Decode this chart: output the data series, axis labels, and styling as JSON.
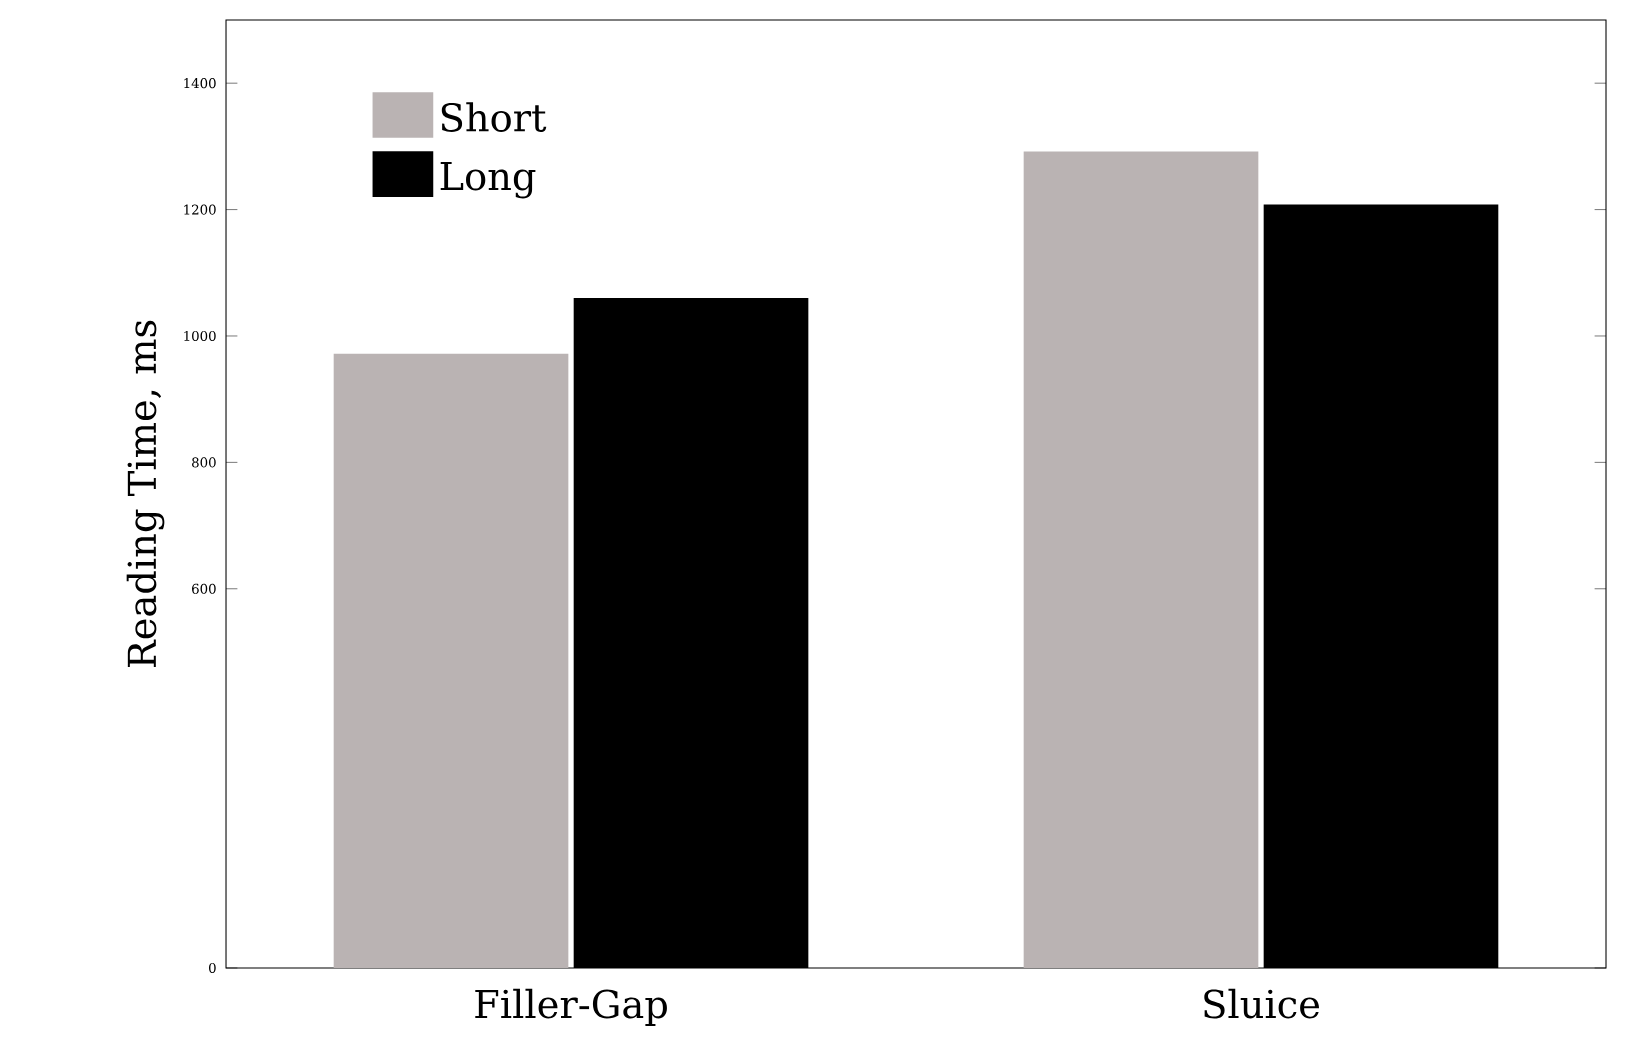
{
  "chart_data": {
    "type": "bar",
    "ylabel": "Reading Time, ms",
    "categories": [
      "Filler-Gap",
      "Sluice"
    ],
    "series": [
      {
        "name": "Short",
        "color": "#bab3b3",
        "values": [
          972,
          1292
        ]
      },
      {
        "name": "Long",
        "color": "#000000",
        "values": [
          1060,
          1208
        ]
      }
    ],
    "ylim": [
      0,
      1500
    ],
    "yticks": [
      0,
      600,
      800,
      1000,
      1200,
      1400
    ],
    "legend": "top left"
  }
}
